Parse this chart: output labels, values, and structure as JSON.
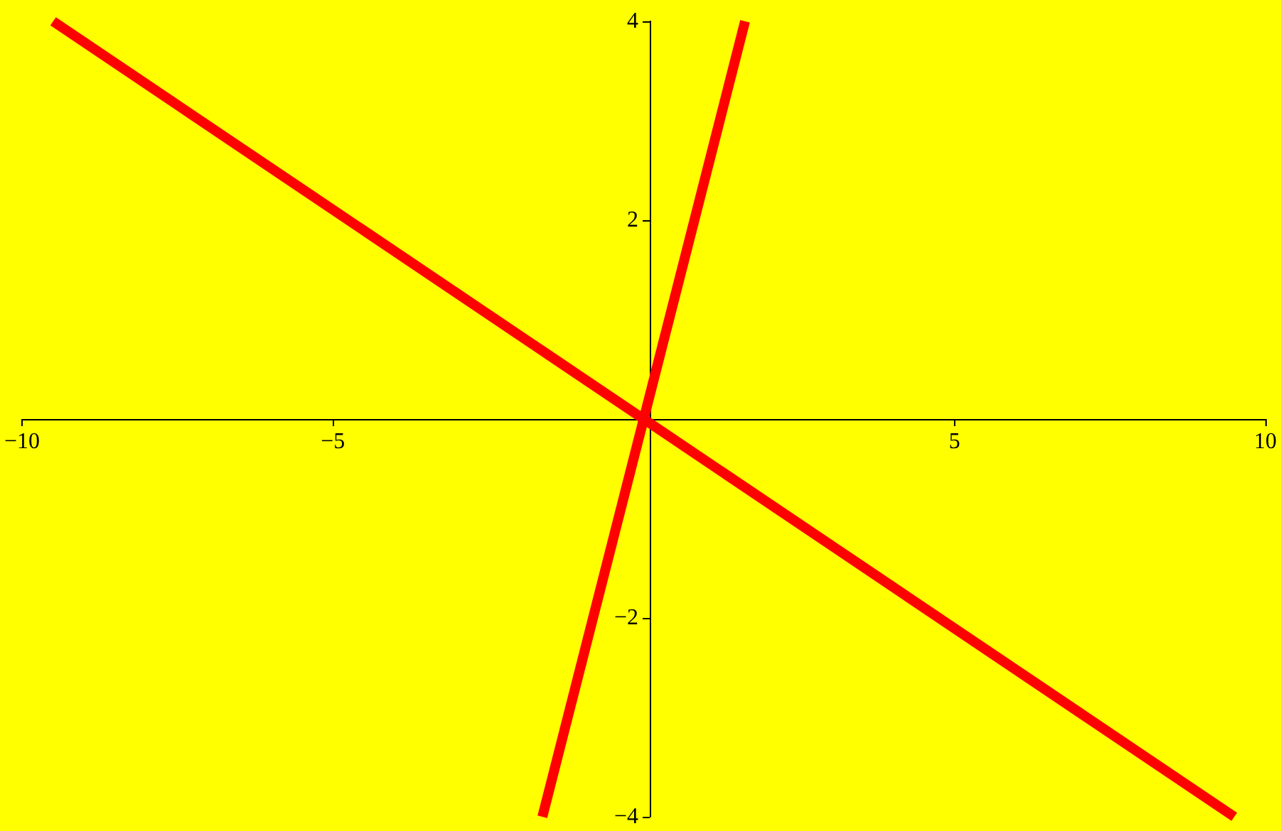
{
  "chart_data": {
    "type": "line",
    "series": [
      {
        "color": "#ff0000",
        "x": [
          -9.5,
          9.5
        ],
        "values": [
          4,
          -4
        ]
      },
      {
        "color": "#ff0000",
        "x": [
          -1.63,
          1.63
        ],
        "values": [
          -4,
          4
        ]
      }
    ],
    "xlim": [
      -10,
      10
    ],
    "ylim": [
      -4,
      4
    ],
    "xticks": [
      {
        "value": -10,
        "label": "−10"
      },
      {
        "value": -5,
        "label": "−5"
      },
      5,
      10
    ],
    "yticks": [
      {
        "value": -4,
        "label": "−4"
      },
      {
        "value": -2,
        "label": "−2"
      },
      2,
      4
    ],
    "grid": false,
    "marker": "none",
    "line_style": "solid"
  }
}
